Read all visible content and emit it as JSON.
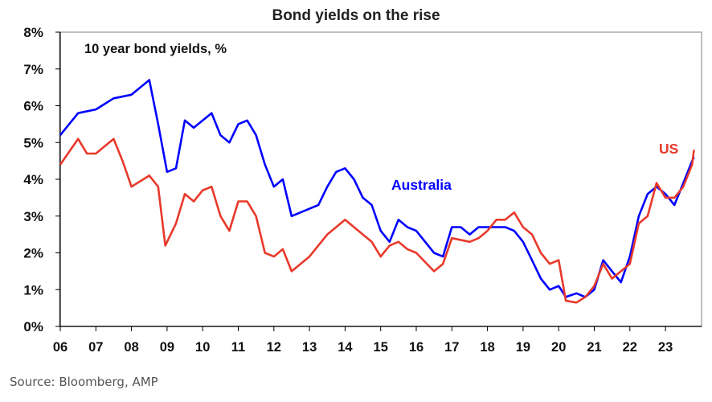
{
  "chart_data": {
    "type": "line",
    "title": "Bond yields on the rise",
    "subtitle": "10 year bond yields, %",
    "xlabel": "",
    "ylabel": "",
    "xlim": [
      2006,
      2023.85
    ],
    "ylim": [
      0,
      8
    ],
    "x_tick_labels": [
      "06",
      "07",
      "08",
      "09",
      "10",
      "11",
      "12",
      "13",
      "14",
      "15",
      "16",
      "17",
      "18",
      "19",
      "20",
      "21",
      "22",
      "23"
    ],
    "y_tick_labels": [
      "0%",
      "1%",
      "2%",
      "3%",
      "4%",
      "5%",
      "6%",
      "7%",
      "8%"
    ],
    "grid": false,
    "series": [
      {
        "name": "Australia",
        "color": "#0000ff",
        "x": [
          2006.0,
          2006.5,
          2007.0,
          2007.5,
          2008.0,
          2008.5,
          2008.75,
          2009.0,
          2009.25,
          2009.5,
          2009.75,
          2010.0,
          2010.25,
          2010.5,
          2010.75,
          2011.0,
          2011.25,
          2011.5,
          2011.75,
          2012.0,
          2012.25,
          2012.5,
          2012.75,
          2013.0,
          2013.25,
          2013.5,
          2013.75,
          2014.0,
          2014.25,
          2014.5,
          2014.75,
          2015.0,
          2015.25,
          2015.5,
          2015.75,
          2016.0,
          2016.5,
          2016.75,
          2017.0,
          2017.25,
          2017.5,
          2017.75,
          2018.0,
          2018.5,
          2018.75,
          2019.0,
          2019.25,
          2019.5,
          2019.75,
          2020.0,
          2020.2,
          2020.5,
          2020.75,
          2021.0,
          2021.25,
          2021.5,
          2021.75,
          2022.0,
          2022.25,
          2022.5,
          2022.75,
          2023.0,
          2023.25,
          2023.5,
          2023.75,
          2023.8
        ],
        "y": [
          5.2,
          5.8,
          5.9,
          6.2,
          6.3,
          6.7,
          5.5,
          4.2,
          4.3,
          5.6,
          5.4,
          5.6,
          5.8,
          5.2,
          5.0,
          5.5,
          5.6,
          5.2,
          4.4,
          3.8,
          4.0,
          3.0,
          3.1,
          3.2,
          3.3,
          3.8,
          4.2,
          4.3,
          4.0,
          3.5,
          3.3,
          2.6,
          2.3,
          2.9,
          2.7,
          2.6,
          2.0,
          1.9,
          2.7,
          2.7,
          2.5,
          2.7,
          2.7,
          2.7,
          2.6,
          2.3,
          1.8,
          1.3,
          1.0,
          1.1,
          0.8,
          0.9,
          0.8,
          1.0,
          1.8,
          1.5,
          1.2,
          1.9,
          3.0,
          3.6,
          3.8,
          3.6,
          3.3,
          3.9,
          4.5,
          4.6
        ]
      },
      {
        "name": "US",
        "color": "#e8392b",
        "x": [
          2006.0,
          2006.5,
          2006.75,
          2007.0,
          2007.5,
          2007.75,
          2008.0,
          2008.5,
          2008.75,
          2008.95,
          2009.25,
          2009.5,
          2009.75,
          2010.0,
          2010.25,
          2010.5,
          2010.75,
          2011.0,
          2011.25,
          2011.5,
          2011.75,
          2012.0,
          2012.25,
          2012.5,
          2012.75,
          2013.0,
          2013.5,
          2013.75,
          2014.0,
          2014.25,
          2014.5,
          2014.75,
          2015.0,
          2015.25,
          2015.5,
          2015.75,
          2016.0,
          2016.5,
          2016.75,
          2017.0,
          2017.5,
          2017.75,
          2018.0,
          2018.25,
          2018.5,
          2018.75,
          2019.0,
          2019.25,
          2019.5,
          2019.75,
          2020.0,
          2020.2,
          2020.5,
          2020.75,
          2021.0,
          2021.25,
          2021.5,
          2021.75,
          2022.0,
          2022.25,
          2022.5,
          2022.75,
          2023.0,
          2023.25,
          2023.5,
          2023.75,
          2023.8
        ],
        "y": [
          4.4,
          5.1,
          4.7,
          4.7,
          5.1,
          4.5,
          3.8,
          4.1,
          3.8,
          2.2,
          2.8,
          3.6,
          3.4,
          3.7,
          3.8,
          3.0,
          2.6,
          3.4,
          3.4,
          3.0,
          2.0,
          1.9,
          2.1,
          1.5,
          1.7,
          1.9,
          2.5,
          2.7,
          2.9,
          2.7,
          2.5,
          2.3,
          1.9,
          2.2,
          2.3,
          2.1,
          2.0,
          1.5,
          1.7,
          2.4,
          2.3,
          2.4,
          2.6,
          2.9,
          2.9,
          3.1,
          2.7,
          2.5,
          2.0,
          1.7,
          1.8,
          0.7,
          0.65,
          0.8,
          1.1,
          1.7,
          1.3,
          1.5,
          1.7,
          2.8,
          3.0,
          3.9,
          3.5,
          3.5,
          3.8,
          4.4,
          4.8
        ]
      }
    ],
    "annotations": [
      {
        "text": "Australia",
        "series": "Australia"
      },
      {
        "text": "US",
        "series": "US"
      }
    ],
    "legend": "inline labels"
  },
  "source": "Source: Bloomberg, AMP"
}
